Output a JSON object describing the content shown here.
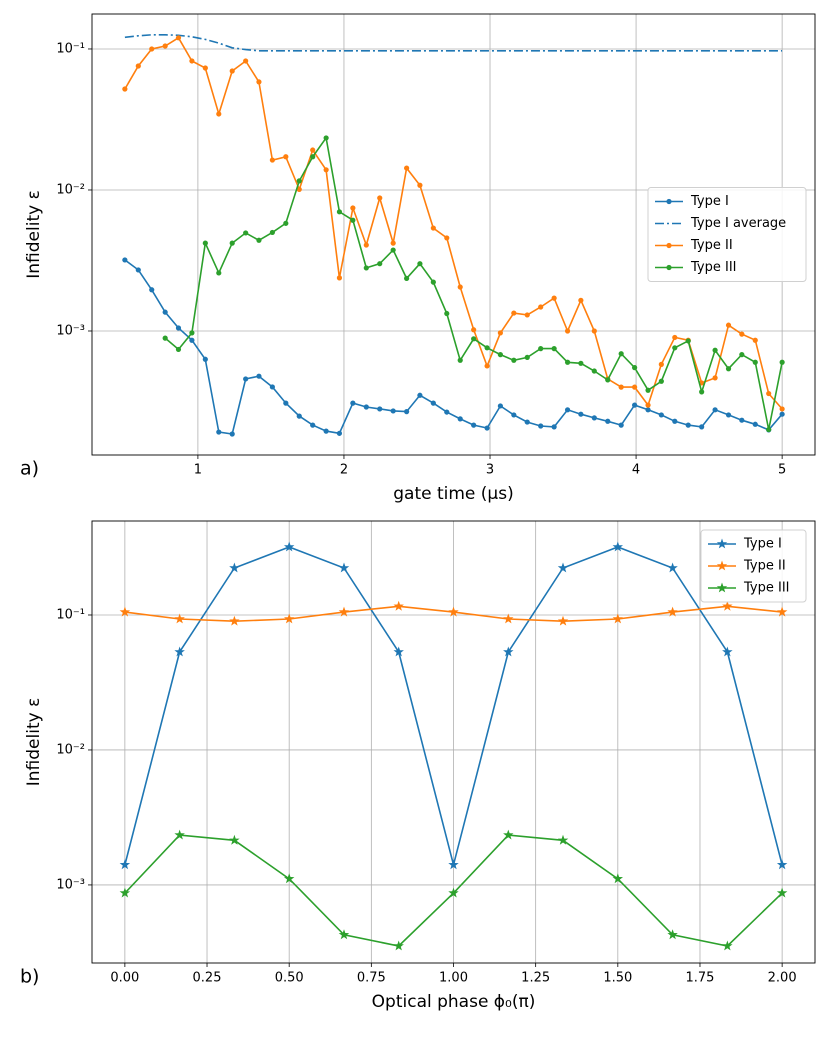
{
  "chart_data": [
    {
      "type": "line",
      "panel_label": "a)",
      "xlabel": "gate time (μs)",
      "ylabel": "Infidelity ε",
      "yscale": "log",
      "grid": true,
      "legend": "center right",
      "xlim": [
        0.275,
        5.225
      ],
      "xticks": [
        1,
        2,
        3,
        4,
        5
      ],
      "ylim": [
        0.000132,
        0.177
      ],
      "yticks": [
        {
          "value": 0.001,
          "label": "10⁻³"
        },
        {
          "value": 0.01,
          "label": "10⁻²"
        },
        {
          "value": 0.1,
          "label": "10⁻¹"
        }
      ],
      "x": [
        0.5,
        0.592,
        0.684,
        0.776,
        0.867,
        0.959,
        1.051,
        1.143,
        1.235,
        1.327,
        1.418,
        1.51,
        1.602,
        1.694,
        1.786,
        1.878,
        1.969,
        2.061,
        2.153,
        2.245,
        2.337,
        2.429,
        2.52,
        2.612,
        2.704,
        2.796,
        2.888,
        2.98,
        3.071,
        3.163,
        3.255,
        3.347,
        3.439,
        3.531,
        3.622,
        3.714,
        3.806,
        3.898,
        3.99,
        4.082,
        4.173,
        4.265,
        4.357,
        4.449,
        4.541,
        4.633,
        4.724,
        4.816,
        4.908,
        5.0
      ],
      "series": [
        {
          "name": "Type I",
          "color": "#1f77b4",
          "marker": "circle",
          "linestyle": "solid",
          "values": [
            0.00319,
            0.00271,
            0.00196,
            0.00136,
            0.00105,
            0.00086,
            0.00063,
            0.000192,
            0.000186,
            0.000457,
            0.000478,
            0.000401,
            0.000308,
            0.000249,
            0.000215,
            0.000195,
            0.000188,
            0.000308,
            0.000289,
            0.00028,
            0.000271,
            0.000268,
            0.00035,
            0.000308,
            0.000266,
            0.000238,
            0.000215,
            0.000205,
            0.000294,
            0.000254,
            0.000226,
            0.000212,
            0.000209,
            0.000276,
            0.000257,
            0.000242,
            0.000229,
            0.000215,
            0.000298,
            0.000276,
            0.000254,
            0.000229,
            0.000215,
            0.000209,
            0.000276,
            0.000254,
            0.000233,
            0.000218,
            0.000199,
            0.000257
          ]
        },
        {
          "name": "Type I average",
          "color": "#1f77b4",
          "marker": "none",
          "linestyle": "dashdot",
          "values": [
            0.121,
            0.124,
            0.126,
            0.126,
            0.125,
            0.122,
            0.117,
            0.11,
            0.102,
            0.099,
            0.097,
            0.097,
            0.097,
            0.097,
            0.097,
            0.097,
            0.097,
            0.097,
            0.097,
            0.097,
            0.097,
            0.097,
            0.097,
            0.097,
            0.097,
            0.097,
            0.097,
            0.097,
            0.097,
            0.097,
            0.097,
            0.097,
            0.097,
            0.097,
            0.097,
            0.097,
            0.097,
            0.097,
            0.097,
            0.097,
            0.097,
            0.097,
            0.097,
            0.097,
            0.097,
            0.097,
            0.097,
            0.097,
            0.097,
            0.097
          ]
        },
        {
          "name": "Type II",
          "color": "#ff7f0e",
          "marker": "circle",
          "linestyle": "solid",
          "values": [
            0.052,
            0.0757,
            0.1,
            0.105,
            0.12,
            0.0822,
            0.0733,
            0.0346,
            0.0698,
            0.0822,
            0.0584,
            0.0163,
            0.0172,
            0.0101,
            0.0192,
            0.0139,
            0.00238,
            0.00745,
            0.00407,
            0.00877,
            0.0042,
            0.0143,
            0.0108,
            0.00537,
            0.00457,
            0.00205,
            0.00102,
            0.000565,
            0.00097,
            0.00134,
            0.0013,
            0.00148,
            0.00171,
            0.001,
            0.00165,
            0.001,
            0.000457,
            0.0004,
            0.0004,
            0.000298,
            0.00058,
            0.0009,
            0.00086,
            0.000428,
            0.000465,
            0.0011,
            0.00095,
            0.00086,
            0.00036,
            0.00028
          ]
        },
        {
          "name": "Type III",
          "color": "#2ca02c",
          "marker": "circle",
          "linestyle": "solid",
          "values": [
            null,
            null,
            null,
            0.00089,
            0.00074,
            0.00097,
            0.0042,
            0.00258,
            0.0042,
            0.00496,
            0.0044,
            0.005,
            0.0058,
            0.0116,
            0.0172,
            0.0234,
            0.007,
            0.0061,
            0.0028,
            0.003,
            0.00375,
            0.00236,
            0.003,
            0.00222,
            0.00133,
            0.00062,
            0.00088,
            0.00076,
            0.00068,
            0.00062,
            0.00065,
            0.00075,
            0.00075,
            0.0006,
            0.00059,
            0.00052,
            0.00045,
            0.00069,
            0.00055,
            0.00038,
            0.00044,
            0.00076,
            0.00085,
            0.00037,
            0.00073,
            0.00054,
            0.00068,
            0.0006,
            0.0002,
            0.0006
          ]
        }
      ]
    },
    {
      "type": "line",
      "panel_label": "b)",
      "xlabel": "Optical phase ϕ₀(π)",
      "ylabel": "Infidelity ε",
      "yscale": "log",
      "grid": true,
      "legend": "upper right",
      "xlim": [
        -0.1,
        2.1
      ],
      "xticks": [
        {
          "value": 0,
          "label": "0.00"
        },
        {
          "value": 0.25,
          "label": "0.25"
        },
        {
          "value": 0.5,
          "label": "0.50"
        },
        {
          "value": 0.75,
          "label": "0.75"
        },
        {
          "value": 1,
          "label": "1.00"
        },
        {
          "value": 1.25,
          "label": "1.25"
        },
        {
          "value": 1.5,
          "label": "1.50"
        },
        {
          "value": 1.75,
          "label": "1.75"
        },
        {
          "value": 2,
          "label": "2.00"
        }
      ],
      "ylim": [
        0.000264,
        0.497
      ],
      "yticks": [
        {
          "value": 0.001,
          "label": "10⁻³"
        },
        {
          "value": 0.01,
          "label": "10⁻²"
        },
        {
          "value": 0.1,
          "label": "10⁻¹"
        }
      ],
      "x": [
        0,
        0.1667,
        0.3333,
        0.5,
        0.6667,
        0.8333,
        1,
        1.1667,
        1.3333,
        1.5,
        1.6667,
        1.8333,
        2
      ],
      "series": [
        {
          "name": "Type I",
          "color": "#1f77b4",
          "marker": "star",
          "linestyle": "solid",
          "values": [
            0.00141,
            0.0532,
            0.223,
            0.319,
            0.223,
            0.0532,
            0.00141,
            0.0532,
            0.223,
            0.319,
            0.223,
            0.0532,
            0.00141
          ]
        },
        {
          "name": "Type II",
          "color": "#ff7f0e",
          "marker": "star",
          "linestyle": "solid",
          "values": [
            0.105,
            0.0934,
            0.09,
            0.0934,
            0.105,
            0.116,
            0.105,
            0.0934,
            0.09,
            0.0934,
            0.105,
            0.116,
            0.105
          ]
        },
        {
          "name": "Type III",
          "color": "#2ca02c",
          "marker": "star",
          "linestyle": "solid",
          "values": [
            0.00087,
            0.00234,
            0.00214,
            0.00111,
            0.000427,
            0.000353,
            0.00087,
            0.00234,
            0.00214,
            0.00111,
            0.000427,
            0.000353,
            0.00087
          ]
        }
      ]
    }
  ]
}
